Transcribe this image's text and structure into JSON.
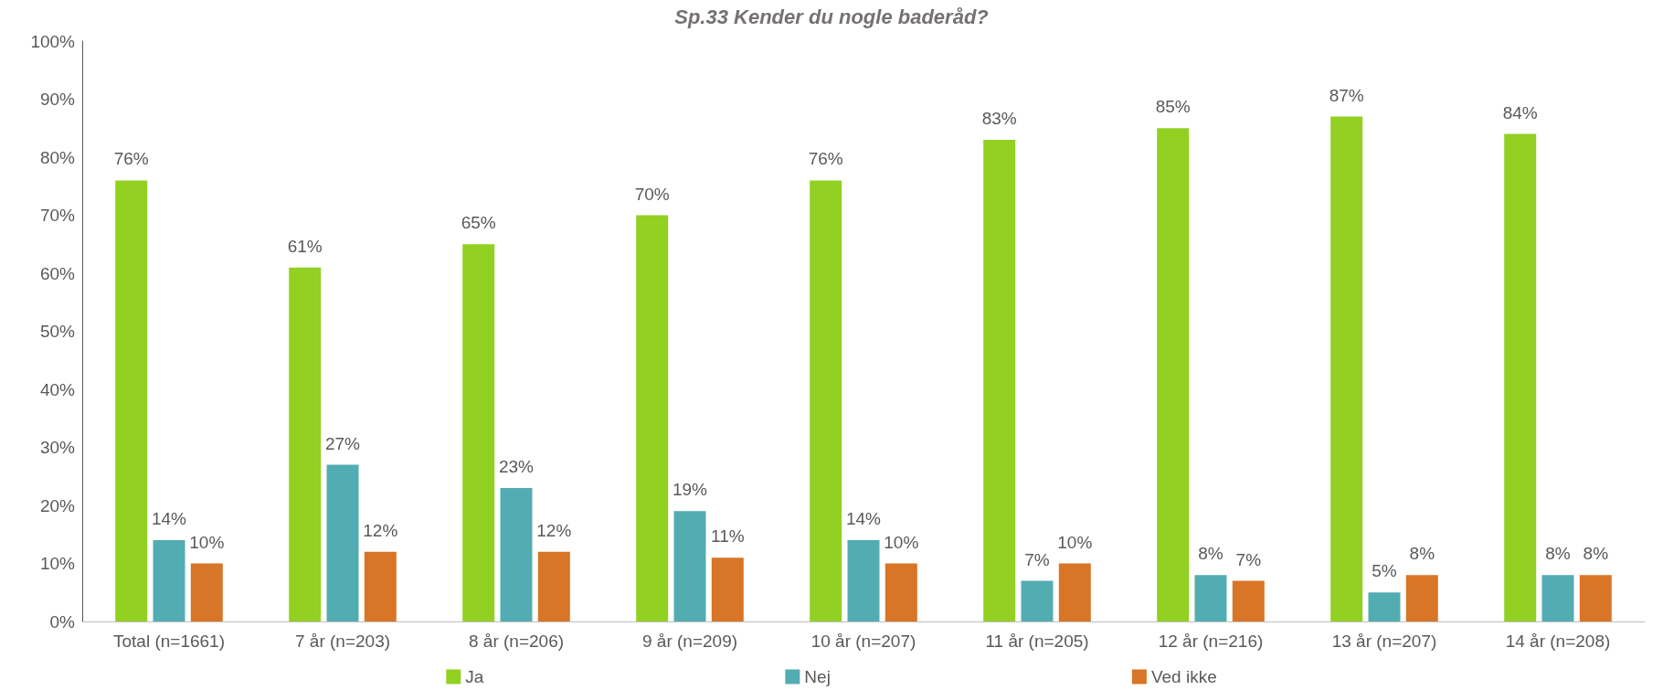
{
  "chart_data": {
    "type": "bar",
    "title": "Sp.33 Kender du nogle baderåd?",
    "categories": [
      "Total (n=1661)",
      "7 år (n=203)",
      "8 år (n=206)",
      "9 år (n=209)",
      "10 år (n=207)",
      "11 år (n=205)",
      "12 år (n=216)",
      "13 år (n=207)",
      "14 år (n=208)"
    ],
    "series": [
      {
        "name": "Ja",
        "color": "#92d022",
        "values": [
          76,
          61,
          65,
          70,
          76,
          83,
          85,
          87,
          84
        ],
        "value_labels": [
          "76%",
          "61%",
          "65%",
          "70%",
          "76%",
          "83%",
          "85%",
          "87%",
          "84%"
        ]
      },
      {
        "name": "Nej",
        "color": "#52adb2",
        "values": [
          14,
          27,
          23,
          19,
          14,
          7,
          8,
          5,
          8
        ],
        "value_labels": [
          "14%",
          "27%",
          "23%",
          "19%",
          "14%",
          "7%",
          "8%",
          "5%",
          "8%"
        ]
      },
      {
        "name": "Ved ikke",
        "color": "#d87526",
        "values": [
          10,
          12,
          12,
          11,
          10,
          10,
          7,
          8,
          8
        ],
        "value_labels": [
          "10%",
          "12%",
          "12%",
          "11%",
          "10%",
          "10%",
          "7%",
          "8%",
          "8%"
        ]
      }
    ],
    "ylim": [
      0,
      100
    ],
    "yticks": [
      {
        "value": 0,
        "label": "0%"
      },
      {
        "value": 10,
        "label": "10%"
      },
      {
        "value": 20,
        "label": "20%"
      },
      {
        "value": 30,
        "label": "30%"
      },
      {
        "value": 40,
        "label": "40%"
      },
      {
        "value": 50,
        "label": "50%"
      },
      {
        "value": 60,
        "label": "60%"
      },
      {
        "value": 70,
        "label": "70%"
      },
      {
        "value": 80,
        "label": "80%"
      },
      {
        "value": 90,
        "label": "90%"
      },
      {
        "value": 100,
        "label": "100%"
      }
    ],
    "grid": false,
    "legend": "bottom"
  }
}
